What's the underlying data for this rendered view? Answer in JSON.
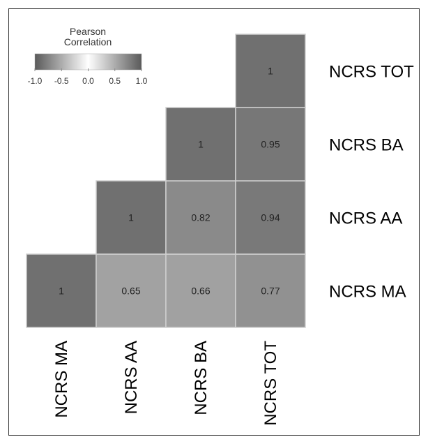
{
  "chart_data": {
    "type": "heatmap",
    "layout": "upper-triangular",
    "variables": [
      "NCRS MA",
      "NCRS AA",
      "NCRS BA",
      "NCRS TOT"
    ],
    "cells": [
      {
        "col": "NCRS MA",
        "row": "NCRS MA",
        "value": 1,
        "label": "1"
      },
      {
        "col": "NCRS AA",
        "row": "NCRS MA",
        "value": 0.65,
        "label": "0.65"
      },
      {
        "col": "NCRS BA",
        "row": "NCRS MA",
        "value": 0.66,
        "label": "0.66"
      },
      {
        "col": "NCRS TOT",
        "row": "NCRS MA",
        "value": 0.77,
        "label": "0.77"
      },
      {
        "col": "NCRS AA",
        "row": "NCRS AA",
        "value": 1,
        "label": "1"
      },
      {
        "col": "NCRS BA",
        "row": "NCRS AA",
        "value": 0.82,
        "label": "0.82"
      },
      {
        "col": "NCRS TOT",
        "row": "NCRS AA",
        "value": 0.94,
        "label": "0.94"
      },
      {
        "col": "NCRS BA",
        "row": "NCRS BA",
        "value": 1,
        "label": "1"
      },
      {
        "col": "NCRS TOT",
        "row": "NCRS BA",
        "value": 0.95,
        "label": "0.95"
      },
      {
        "col": "NCRS TOT",
        "row": "NCRS TOT",
        "value": 1,
        "label": "1"
      }
    ],
    "legend": {
      "title_line1": "Pearson",
      "title_line2": "Correlation",
      "range": [
        -1.0,
        1.0
      ],
      "ticks": [
        "-1.0",
        "-0.5",
        "0.0",
        "0.5",
        "1.0"
      ],
      "placement": "top-left"
    },
    "colors": {
      "low": "#5a5a5a",
      "mid": "#ffffff",
      "high": "#5a5a5a",
      "cell_border": "#d0d0d0"
    }
  }
}
